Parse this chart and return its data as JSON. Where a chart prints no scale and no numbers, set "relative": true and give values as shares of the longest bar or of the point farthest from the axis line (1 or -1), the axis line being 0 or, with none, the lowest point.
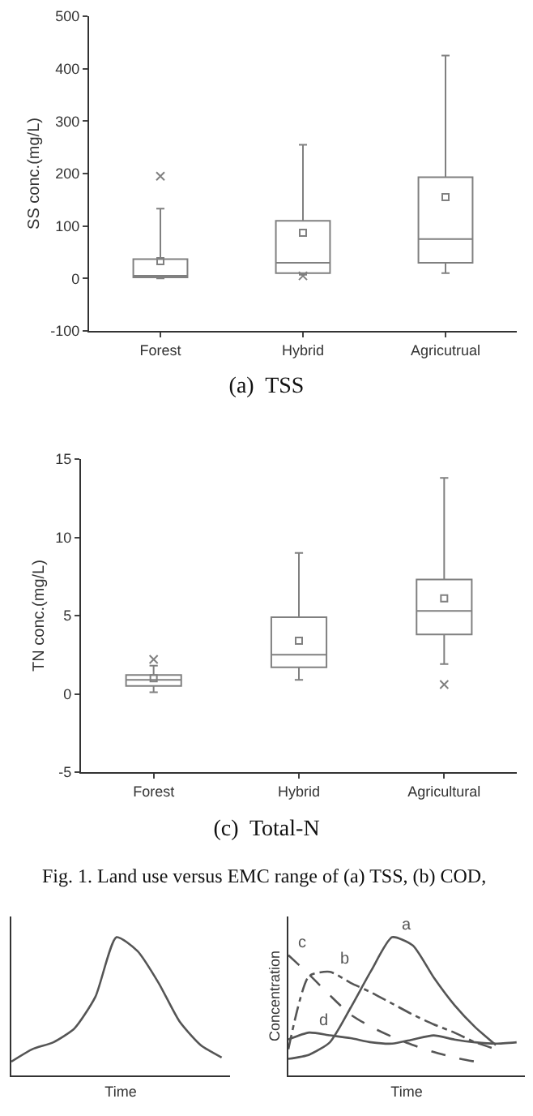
{
  "chart_data": [
    {
      "type": "box",
      "title": "(a)  TSS",
      "ylabel": "SS conc.(mg/L)",
      "categories": [
        "Forest",
        "Hybrid",
        "Agricutrual"
      ],
      "ylim": [
        -100,
        500
      ],
      "yticks": [
        -100,
        0,
        100,
        200,
        300,
        400,
        500
      ],
      "series": [
        {
          "color": "#808080",
          "boxes": [
            {
              "low": 0,
              "q1": 2,
              "median": 5,
              "q3": 37,
              "high": 133,
              "mean": 33,
              "outliers": [
                195
              ]
            },
            {
              "low": 7,
              "q1": 10,
              "median": 30,
              "q3": 110,
              "high": 255,
              "mean": 87,
              "outliers": [
                5
              ]
            },
            {
              "low": 10,
              "q1": 30,
              "median": 75,
              "q3": 193,
              "high": 425,
              "mean": 155
            }
          ]
        }
      ]
    },
    {
      "type": "box",
      "title": "(c)  Total-N",
      "ylabel": "TN conc.(mg/L)",
      "categories": [
        "Forest",
        "Hybrid",
        "Agricultural"
      ],
      "ylim": [
        -5,
        15
      ],
      "yticks": [
        -5,
        0,
        5,
        10,
        15
      ],
      "annotations": [
        "Fig. 1. Land use versus EMC range of (a) TSS, (b) COD,"
      ],
      "series": [
        {
          "color": "#808080",
          "boxes": [
            {
              "low": 0.1,
              "q1": 0.5,
              "median": 0.9,
              "q3": 1.2,
              "high": 1.8,
              "mean": 1.0,
              "outliers": [
                2.2
              ]
            },
            {
              "low": 0.9,
              "q1": 1.7,
              "median": 2.5,
              "q3": 4.9,
              "high": 9.0,
              "mean": 3.4
            },
            {
              "low": 1.9,
              "q1": 3.8,
              "median": 5.3,
              "q3": 7.3,
              "high": 13.8,
              "mean": 6.1,
              "outliers": [
                0.6
              ]
            }
          ]
        }
      ]
    },
    {
      "type": "line",
      "relative": true,
      "xlabel": "Time",
      "categories": [
        null,
        null,
        null,
        null,
        null,
        null,
        null,
        null,
        null,
        null,
        null
      ],
      "series": [
        {
          "color": "#555555",
          "line_style": "solid",
          "values": [
            0.1,
            0.19,
            0.24,
            0.34,
            0.57,
            1.0,
            0.9,
            0.67,
            0.39,
            0.22,
            0.13
          ]
        }
      ]
    },
    {
      "type": "line",
      "relative": true,
      "xlabel": "Time",
      "ylabel": "Concentration",
      "categories": [
        null,
        null,
        null,
        null,
        null,
        null,
        null,
        null,
        null,
        null,
        null,
        null
      ],
      "series": [
        {
          "name": "a",
          "color": "#555555",
          "line_style": "solid",
          "values": [
            0.12,
            0.15,
            0.24,
            0.49,
            0.76,
            1.0,
            0.94,
            0.71,
            0.51,
            0.35,
            0.22,
            null
          ]
        },
        {
          "name": "b",
          "color": "#555555",
          "line_style": "dashdot",
          "values": [
            0.19,
            0.72,
            0.75,
            0.67,
            0.6,
            0.52,
            0.44,
            0.37,
            0.31,
            0.24,
            0.19,
            null
          ]
        },
        {
          "name": "c",
          "color": "#555555",
          "line_style": "dashed",
          "values": [
            0.87,
            0.73,
            0.58,
            0.44,
            0.35,
            0.28,
            0.22,
            0.17,
            0.13,
            0.1,
            null,
            null
          ]
        },
        {
          "name": "d",
          "color": "#555555",
          "line_style": "solid",
          "values": [
            0.26,
            0.31,
            0.29,
            0.27,
            0.24,
            0.23,
            0.26,
            0.29,
            0.26,
            0.24,
            0.23,
            0.24
          ]
        }
      ]
    }
  ]
}
